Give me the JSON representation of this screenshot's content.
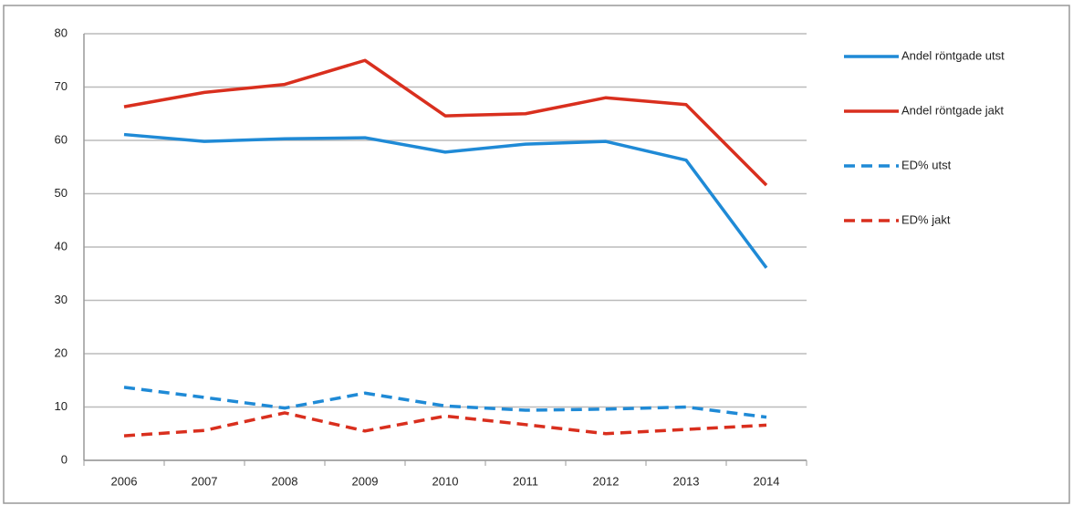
{
  "chart_data": {
    "type": "line",
    "categories": [
      "2006",
      "2007",
      "2008",
      "2009",
      "2010",
      "2011",
      "2012",
      "2013",
      "2014"
    ],
    "series": [
      {
        "name": "Andel röntgade utst",
        "color": "#1f8ad6",
        "dashed": false,
        "values": [
          61.1,
          59.8,
          60.3,
          60.5,
          57.8,
          59.3,
          59.8,
          56.3,
          36.1
        ]
      },
      {
        "name": "Andel röntgade jakt",
        "color": "#d92f1e",
        "dashed": false,
        "values": [
          66.3,
          69,
          70.5,
          75,
          64.6,
          65,
          68,
          66.7,
          51.6
        ]
      },
      {
        "name": "ED% utst",
        "color": "#1f8ad6",
        "dashed": true,
        "values": [
          13.7,
          11.8,
          9.8,
          12.6,
          10.2,
          9.4,
          9.6,
          10,
          8.1
        ]
      },
      {
        "name": "ED% jakt",
        "color": "#d92f1e",
        "dashed": true,
        "values": [
          4.6,
          5.6,
          8.9,
          5.5,
          8.3,
          6.7,
          5,
          5.8,
          6.6
        ]
      }
    ],
    "ylim": [
      0,
      80
    ],
    "yticks": [
      0,
      10,
      20,
      30,
      40,
      50,
      60,
      70,
      80
    ],
    "grid": true,
    "legend": "right"
  }
}
